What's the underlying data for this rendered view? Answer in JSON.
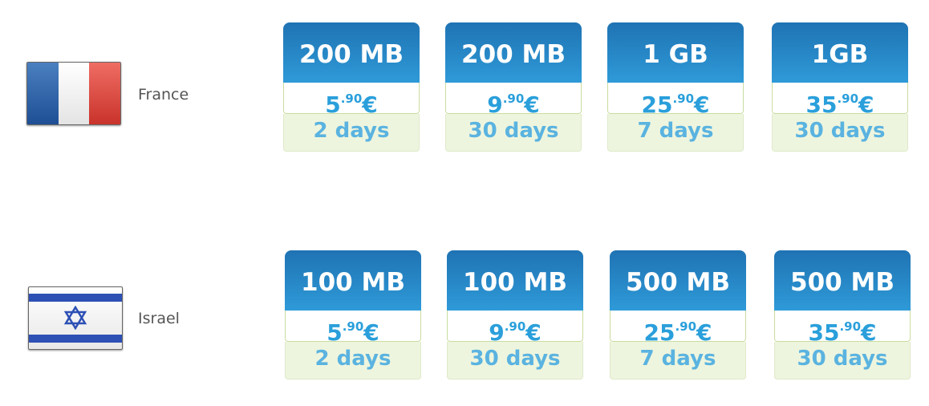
{
  "rows": [
    {
      "country": "France",
      "flag": "france-flag",
      "plans": [
        {
          "data": "200 MB",
          "price_main": "5",
          "price_cents": ".90",
          "currency": "€",
          "duration": "2 days"
        },
        {
          "data": "200 MB",
          "price_main": "9",
          "price_cents": ".90",
          "currency": "€",
          "duration": "30 days"
        },
        {
          "data": "1 GB",
          "price_main": "25",
          "price_cents": ".90",
          "currency": "€",
          "duration": "7 days"
        },
        {
          "data": "1GB",
          "price_main": "35",
          "price_cents": ".90",
          "currency": "€",
          "duration": "30 days"
        }
      ]
    },
    {
      "country": "Israel",
      "flag": "israel-flag",
      "plans": [
        {
          "data": "100 MB",
          "price_main": "5",
          "price_cents": ".90",
          "currency": "€",
          "duration": "2 days"
        },
        {
          "data": "100 MB",
          "price_main": "9",
          "price_cents": ".90",
          "currency": "€",
          "duration": "30 days"
        },
        {
          "data": "500 MB",
          "price_main": "25",
          "price_cents": ".90",
          "currency": "€",
          "duration": "7 days"
        },
        {
          "data": "500 MB",
          "price_main": "35",
          "price_cents": ".90",
          "currency": "€",
          "duration": "30 days"
        }
      ]
    }
  ],
  "colors": {
    "header": "#2a8ccc",
    "price": "#2a9fdb",
    "duration": "#5ab3e0",
    "duration_bg": "#eef5de"
  }
}
